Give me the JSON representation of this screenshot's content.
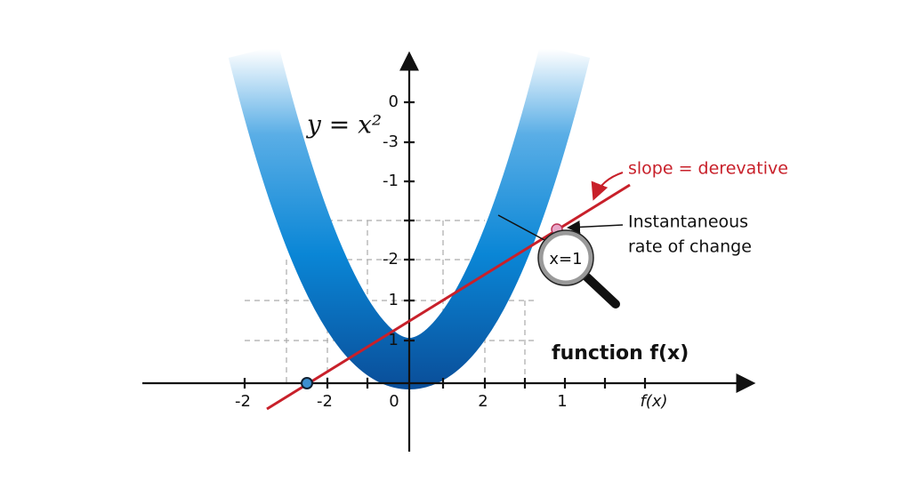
{
  "equation": "y = x²",
  "y_axis_labels": [
    "0",
    "-3",
    "-1",
    "-2",
    "1",
    "1"
  ],
  "x_axis_labels": [
    "-2",
    "-2",
    "0",
    "2",
    "1",
    "f(x)"
  ],
  "annotations": {
    "slope": "slope = derevative",
    "instantaneous": [
      "Instantaneous",
      "rate of change"
    ],
    "magnifier": "x=1",
    "function": "function f(x)"
  }
}
